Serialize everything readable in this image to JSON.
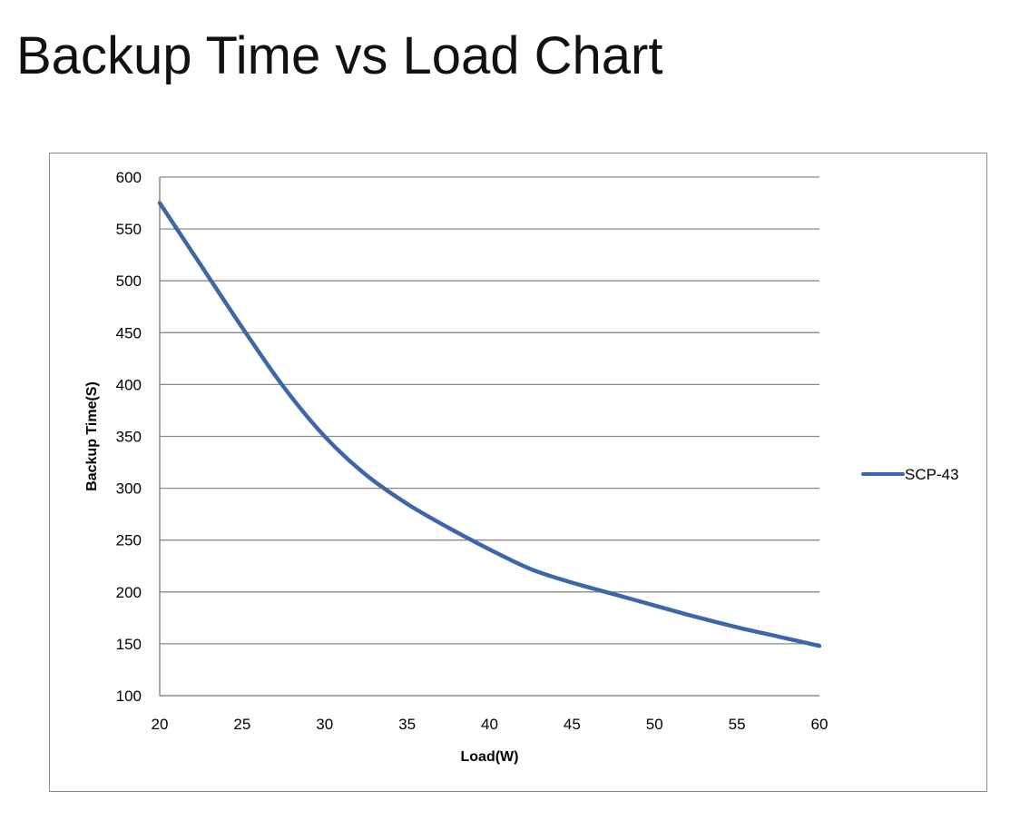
{
  "page": {
    "title": "Backup Time vs Load Chart"
  },
  "chart_data": {
    "type": "line",
    "title": "",
    "xlabel": "Load(W)",
    "ylabel": "Backup Time(S)",
    "xlim": [
      20,
      60
    ],
    "ylim": [
      100,
      600
    ],
    "x_ticks": [
      20,
      25,
      30,
      35,
      40,
      45,
      50,
      55,
      60
    ],
    "y_ticks": [
      100,
      150,
      200,
      250,
      300,
      350,
      400,
      450,
      500,
      550,
      600
    ],
    "grid": {
      "horizontal": true,
      "vertical": false
    },
    "legend_position": "right",
    "series": [
      {
        "name": "SCP-43",
        "color": "#3d67a8",
        "x": [
          20,
          22.5,
          25,
          27.5,
          30,
          32.5,
          35,
          37.5,
          40,
          42.5,
          45,
          47.5,
          50,
          52.5,
          55,
          57.5,
          60
        ],
        "y": [
          575,
          515,
          455,
          398,
          350,
          313,
          285,
          262,
          241,
          222,
          209,
          198,
          187,
          176,
          166,
          157,
          148
        ]
      }
    ]
  }
}
